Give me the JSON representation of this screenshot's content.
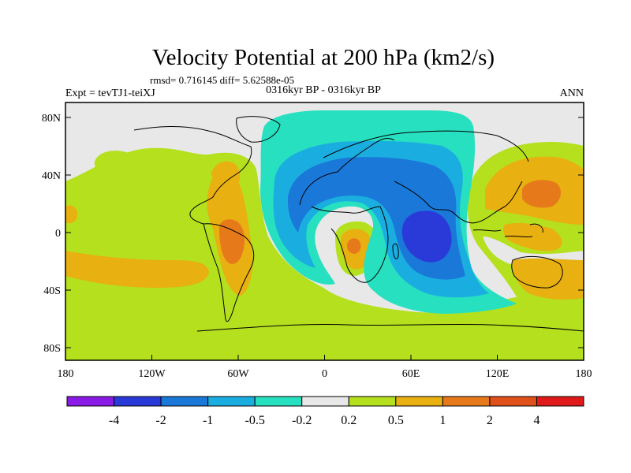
{
  "title": "Velocity Potential at 200 hPa (km2/s)",
  "stats": "rmsd= 0.716145  diff= 5.62588e-05",
  "experiment": "Expt = tevTJ1-teiXJ",
  "period": "0316kyr BP - 0316kyr BP",
  "season": "ANN",
  "y_ticks": [
    "80N",
    "40N",
    "0",
    "40S",
    "80S"
  ],
  "x_ticks": [
    "180",
    "120W",
    "60W",
    "0",
    "60E",
    "120E",
    "180"
  ],
  "colorbar": {
    "labels": [
      "-4",
      "-2",
      "-1",
      "-0.5",
      "-0.2",
      "0.2",
      "0.5",
      "1",
      "2",
      "4"
    ],
    "colors": [
      "#8a1ae6",
      "#2a3ad8",
      "#1a78d8",
      "#1aaee0",
      "#27e0c0",
      "#e8e8e8",
      "#b4e01e",
      "#e8b010",
      "#e67a1a",
      "#e0501a",
      "#e01a1a"
    ]
  },
  "map_fields": {
    "background": "#e8e8e8",
    "coast": "#000000"
  }
}
